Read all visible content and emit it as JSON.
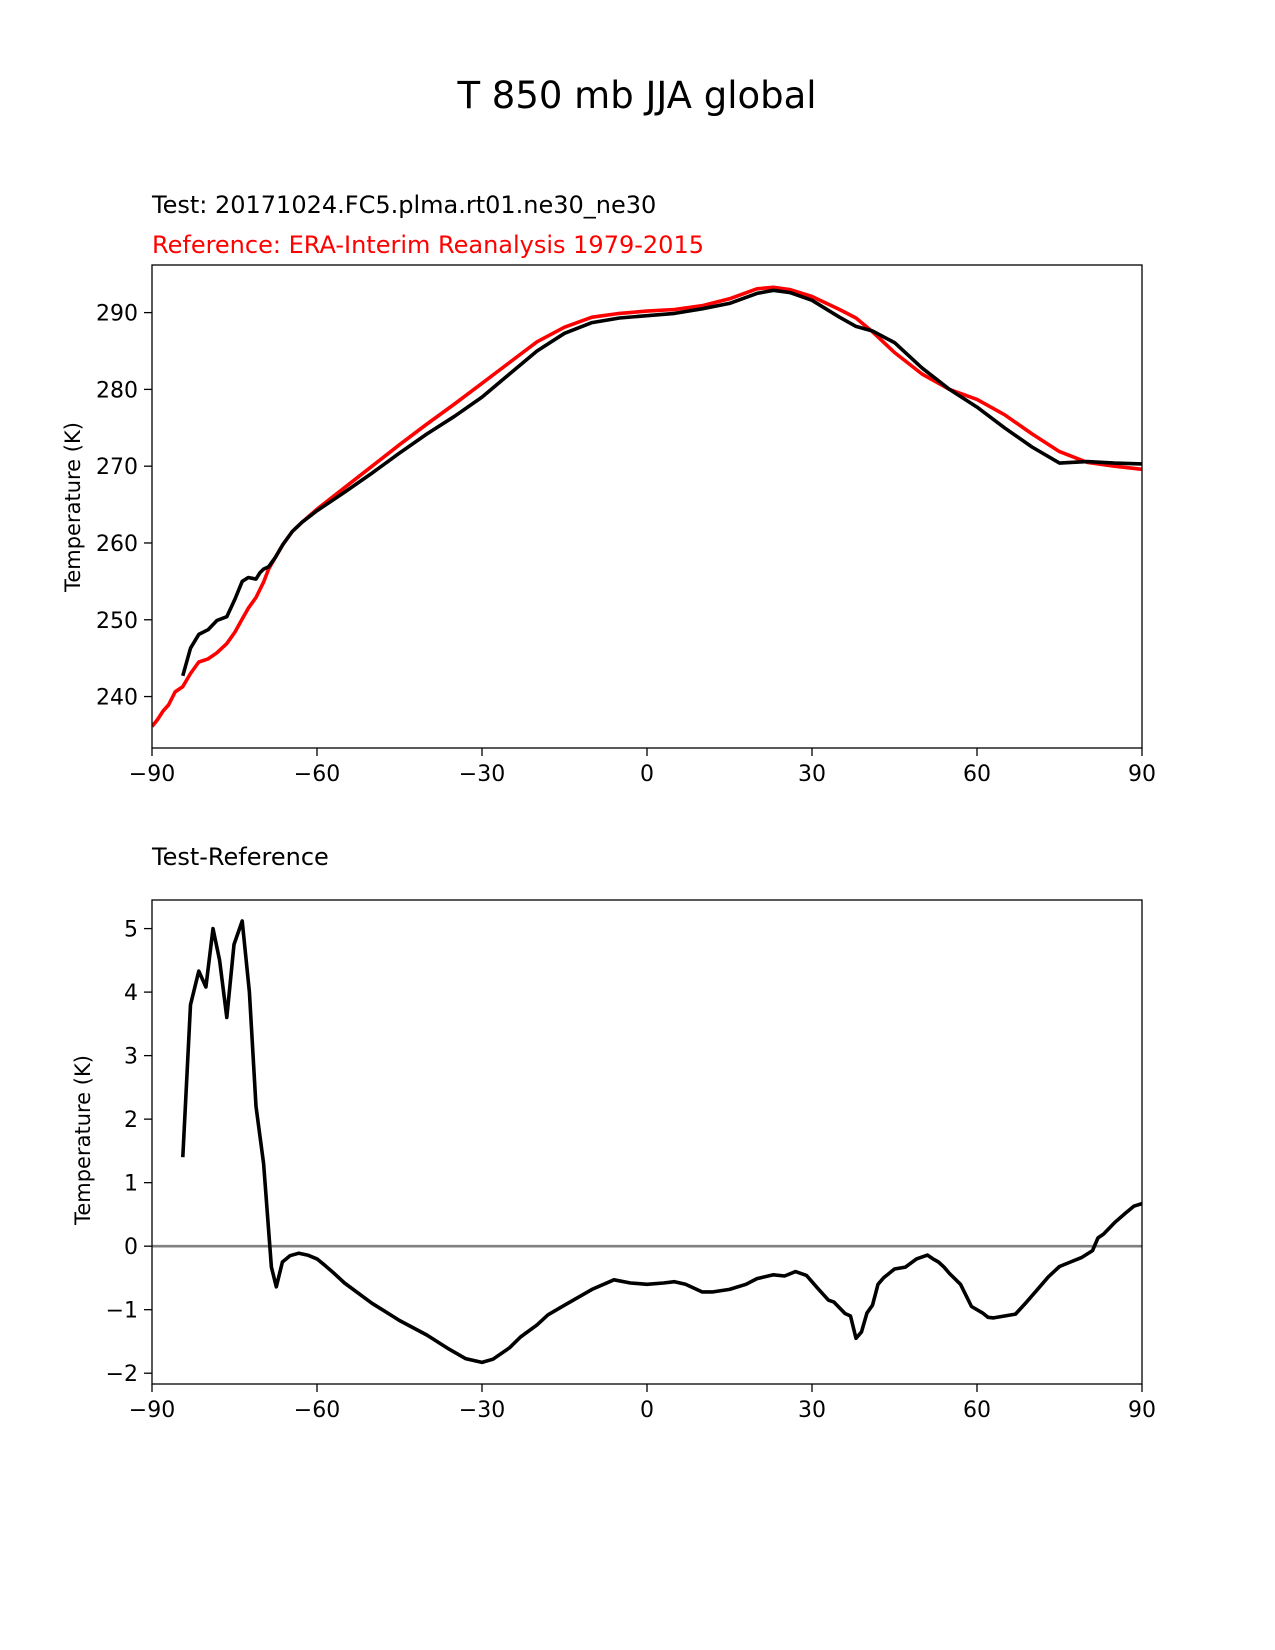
{
  "figure": {
    "title": "T 850 mb JJA global"
  },
  "chart_data": [
    {
      "type": "line",
      "test_label": "Test: 20171024.FC5.plma.rt01.ne30_ne30",
      "reference_label": "Reference: ERA-Interim Reanalysis 1979-2015",
      "ylabel": "Temperature (K)",
      "xlabel": "",
      "xlim": [
        -90,
        90
      ],
      "ylim": [
        233.3,
        296.2
      ],
      "xticks": [
        -90,
        -60,
        -30,
        0,
        30,
        60,
        90
      ],
      "xtick_labels": [
        "−90",
        "−60",
        "−30",
        "0",
        "30",
        "60",
        "90"
      ],
      "yticks": [
        240,
        250,
        260,
        270,
        280,
        290
      ],
      "ytick_labels": [
        "240",
        "250",
        "260",
        "270",
        "280",
        "290"
      ],
      "grid": false,
      "series": [
        {
          "name": "Test",
          "color": "#000000",
          "x": [
            -84.4,
            -83,
            -81.5,
            -79.8,
            -78.2,
            -76.4,
            -74.9,
            -73.6,
            -72.5,
            -71.1,
            -70.4,
            -69.7,
            -68.8,
            -67.6,
            -66.2,
            -64.5,
            -62.7,
            -60,
            -55,
            -50,
            -45,
            -40,
            -35,
            -30,
            -25,
            -20,
            -15,
            -10,
            -5,
            0,
            5,
            10,
            15,
            20,
            23,
            26,
            30,
            35,
            38,
            41,
            45,
            50,
            55,
            60,
            65,
            70,
            75,
            80,
            85,
            90
          ],
          "values": [
            242.7,
            246.3,
            248.1,
            248.7,
            249.9,
            250.4,
            252.7,
            255.0,
            255.5,
            255.3,
            256.1,
            256.6,
            256.9,
            258.1,
            259.8,
            261.5,
            262.7,
            264.2,
            266.6,
            269.1,
            271.7,
            274.2,
            276.5,
            279.0,
            282.0,
            285.0,
            287.3,
            288.7,
            289.3,
            289.6,
            289.9,
            290.5,
            291.2,
            292.5,
            292.9,
            292.6,
            291.6,
            289.4,
            288.2,
            287.6,
            286.1,
            282.8,
            280.0,
            277.7,
            275.0,
            272.5,
            270.4,
            270.6,
            270.4,
            270.3
          ]
        },
        {
          "name": "Reference",
          "color": "#ff0000",
          "x": [
            -90,
            -89,
            -88,
            -87,
            -85.8,
            -84.4,
            -83,
            -81.5,
            -79.8,
            -78.2,
            -76.4,
            -74.9,
            -73.6,
            -72.5,
            -71.1,
            -69.7,
            -68.8,
            -67.6,
            -66.2,
            -64.5,
            -62.7,
            -60,
            -55,
            -50,
            -45,
            -40,
            -35,
            -30,
            -25,
            -20,
            -15,
            -10,
            -5,
            0,
            5,
            10,
            15,
            20,
            23,
            26,
            30,
            35,
            38,
            41,
            45,
            50,
            55,
            60,
            65,
            70,
            75,
            80,
            85,
            90
          ],
          "values": [
            236.1,
            237.0,
            238.1,
            238.9,
            240.6,
            241.3,
            243.0,
            244.5,
            244.9,
            245.7,
            246.9,
            248.4,
            250.1,
            251.5,
            252.9,
            254.9,
            256.6,
            258.1,
            259.8,
            261.5,
            262.7,
            264.4,
            267.2,
            270.0,
            272.8,
            275.5,
            278.1,
            280.8,
            283.5,
            286.2,
            288.1,
            289.4,
            289.9,
            290.2,
            290.4,
            290.9,
            291.8,
            293.1,
            293.3,
            293.0,
            292.1,
            290.4,
            289.3,
            287.5,
            284.8,
            282.0,
            280.0,
            278.7,
            276.7,
            274.2,
            271.9,
            270.5,
            270.0,
            269.6
          ]
        }
      ]
    },
    {
      "type": "line",
      "subtitle": "Test-Reference",
      "ylabel": "Temperature (K)",
      "xlabel": "",
      "xlim": [
        -90,
        90
      ],
      "ylim": [
        -2.17,
        5.45
      ],
      "xticks": [
        -90,
        -60,
        -30,
        0,
        30,
        60,
        90
      ],
      "xtick_labels": [
        "−90",
        "−60",
        "−30",
        "0",
        "30",
        "60",
        "90"
      ],
      "yticks": [
        -2,
        -1,
        0,
        1,
        2,
        3,
        4,
        5
      ],
      "ytick_labels": [
        "−2",
        "−1",
        "0",
        "1",
        "2",
        "3",
        "4",
        "5"
      ],
      "grid": false,
      "zero_line": {
        "value": 0,
        "color": "#808080"
      },
      "series": [
        {
          "name": "Test-Reference",
          "color": "#000000",
          "x": [
            -84.4,
            -83,
            -81.5,
            -80.2,
            -78.9,
            -77.7,
            -76.4,
            -75.1,
            -73.6,
            -72.3,
            -71.1,
            -69.7,
            -68.3,
            -67.4,
            -66.3,
            -64.9,
            -63.3,
            -61.7,
            -60,
            -58.6,
            -57,
            -55,
            -50,
            -45,
            -40,
            -36,
            -33,
            -30,
            -28,
            -25,
            -23,
            -20,
            -18,
            -15,
            -10,
            -6,
            -3,
            0,
            3,
            5,
            7,
            10,
            12,
            15,
            18,
            20,
            23,
            25,
            27,
            29,
            31,
            33,
            34,
            36,
            37,
            38,
            39,
            40,
            41,
            42,
            43,
            45,
            47,
            49,
            51,
            52,
            53,
            54,
            55,
            57,
            59,
            61,
            62,
            63,
            65,
            67,
            69,
            71,
            73,
            75,
            77,
            79,
            81,
            82,
            83,
            85,
            87,
            88.5,
            90
          ],
          "values": [
            1.4,
            3.8,
            4.33,
            4.08,
            5.0,
            4.5,
            3.6,
            4.75,
            5.12,
            4.0,
            2.2,
            1.3,
            -0.33,
            -0.64,
            -0.25,
            -0.15,
            -0.11,
            -0.14,
            -0.2,
            -0.3,
            -0.42,
            -0.58,
            -0.9,
            -1.17,
            -1.4,
            -1.62,
            -1.77,
            -1.83,
            -1.78,
            -1.6,
            -1.43,
            -1.24,
            -1.08,
            -0.93,
            -0.68,
            -0.53,
            -0.58,
            -0.6,
            -0.58,
            -0.56,
            -0.6,
            -0.72,
            -0.72,
            -0.68,
            -0.6,
            -0.51,
            -0.45,
            -0.47,
            -0.4,
            -0.46,
            -0.66,
            -0.85,
            -0.88,
            -1.06,
            -1.1,
            -1.45,
            -1.35,
            -1.05,
            -0.93,
            -0.6,
            -0.5,
            -0.36,
            -0.33,
            -0.2,
            -0.14,
            -0.2,
            -0.25,
            -0.33,
            -0.43,
            -0.6,
            -0.95,
            -1.05,
            -1.12,
            -1.13,
            -1.1,
            -1.07,
            -0.88,
            -0.68,
            -0.48,
            -0.32,
            -0.25,
            -0.18,
            -0.07,
            0.13,
            0.19,
            0.37,
            0.52,
            0.63,
            0.67
          ]
        }
      ]
    }
  ]
}
